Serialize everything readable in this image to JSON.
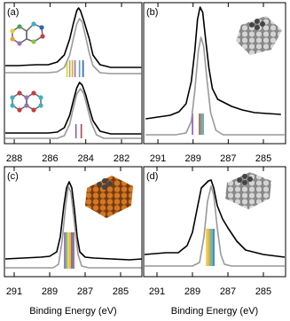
{
  "chart_data": [
    {
      "type": "line",
      "label": "(a)",
      "xlim": [
        288.55,
        280.86
      ],
      "xticks": [
        288,
        286,
        284,
        282
      ],
      "ylim": [
        0,
        159
      ],
      "series": [
        {
          "color": "#000000",
          "x": [
            288.5,
            287.8,
            286.8,
            286.1,
            285.6,
            285.2,
            284.9,
            284.7,
            284.5,
            284.4,
            284.3,
            284.1,
            283.8,
            283.6,
            283.2,
            282.6,
            281.9,
            280.9
          ],
          "values": [
            88,
            88,
            89,
            89,
            92,
            100,
            118,
            135,
            150,
            153,
            150,
            138,
            118,
            100,
            89,
            86,
            86,
            86
          ]
        },
        {
          "color": "#999999",
          "x": [
            288.5,
            286.1,
            285.6,
            285.2,
            284.9,
            284.7,
            284.5,
            284.35,
            284.2,
            284.0,
            283.8,
            283.6,
            283.2,
            282.6,
            280.9
          ],
          "values": [
            80,
            80,
            81,
            86,
            100,
            118,
            135,
            141,
            137,
            120,
            102,
            88,
            80,
            79,
            79
          ]
        },
        {
          "color": "#000000",
          "x": [
            288.5,
            286.1,
            285.6,
            285.2,
            284.9,
            284.7,
            284.5,
            284.35,
            284.2,
            284.0,
            283.8,
            283.6,
            283.2,
            282.6,
            280.9
          ],
          "values": [
            12,
            12,
            13,
            18,
            32,
            48,
            63,
            69,
            66,
            55,
            40,
            26,
            14,
            11,
            11
          ]
        },
        {
          "color": "#999999",
          "x": [
            288.5,
            285.6,
            285.2,
            284.9,
            284.7,
            284.5,
            284.3,
            284.1,
            283.9,
            283.7,
            283.4,
            283.0,
            280.9
          ],
          "values": [
            6,
            6,
            9,
            22,
            40,
            56,
            62,
            56,
            40,
            24,
            10,
            6,
            6
          ]
        }
      ],
      "sticks": [
        {
          "x": [
            285.05,
            284.9,
            284.75,
            284.6,
            284.35,
            284.15
          ],
          "colors": [
            "#e8c840",
            "#8bc34a",
            "#f0a030",
            "#9c6fb8",
            "#3fb0c8",
            "#3060c0"
          ],
          "base": 75,
          "top": 94
        },
        {
          "x": [
            284.55,
            284.25
          ],
          "colors": [
            "#8a5aa8",
            "#c04040"
          ],
          "base": 6,
          "top": 22
        }
      ]
    },
    {
      "type": "line",
      "label": "(b)",
      "xlim": [
        291.81,
        283.74
      ],
      "xticks": [
        291,
        289,
        287,
        285
      ],
      "ylim": [
        0,
        159
      ],
      "series": [
        {
          "color": "#000000",
          "x": [
            291.7,
            291.0,
            290.3,
            289.8,
            289.4,
            289.1,
            288.9,
            288.75,
            288.6,
            288.45,
            288.3,
            288.1,
            287.9,
            287.6,
            287.2,
            286.8,
            286.2,
            285.5,
            284.8,
            284.0
          ],
          "values": [
            28,
            30,
            32,
            36,
            45,
            70,
            105,
            140,
            154,
            148,
            120,
            85,
            62,
            50,
            46,
            42,
            38,
            35,
            34,
            33
          ]
        },
        {
          "color": "#999999",
          "x": [
            291.7,
            290.0,
            289.4,
            289.1,
            288.9,
            288.7,
            288.55,
            288.4,
            288.2,
            288.0,
            287.7,
            287.3,
            283.8
          ],
          "values": [
            10,
            10,
            12,
            25,
            60,
            105,
            120,
            110,
            70,
            35,
            15,
            10,
            10
          ]
        }
      ],
      "sticks": [
        {
          "x": [
            289.03,
            288.63,
            288.53,
            288.43
          ],
          "colors": [
            "#8a5aa8",
            "#c04040",
            "#50a050",
            "#40a0c0"
          ],
          "base": 10,
          "top": 34
        }
      ]
    },
    {
      "type": "line",
      "label": "(c)",
      "xlabel": "Binding Energy (eV)",
      "xlim": [
        291.55,
        283.8
      ],
      "xticks": [
        291,
        289,
        287,
        285
      ],
      "ylim": [
        0,
        124
      ],
      "series": [
        {
          "color": "#000000",
          "x": [
            291.5,
            290.5,
            289.5,
            289.0,
            288.6,
            288.4,
            288.2,
            288.05,
            287.9,
            287.75,
            287.6,
            287.45,
            287.3,
            287.0,
            286.5,
            285.5,
            284.5,
            283.8
          ],
          "values": [
            20,
            21,
            22,
            23,
            28,
            45,
            80,
            100,
            107,
            100,
            75,
            45,
            28,
            22,
            21,
            20,
            19,
            20
          ]
        },
        {
          "color": "#999999",
          "x": [
            291.5,
            288.8,
            288.5,
            288.3,
            288.1,
            287.95,
            287.8,
            287.6,
            287.4,
            287.2,
            286.8,
            283.8
          ],
          "values": [
            10,
            10,
            14,
            40,
            80,
            102,
            95,
            60,
            25,
            12,
            10,
            10
          ]
        }
      ],
      "sticks": [
        {
          "x": [
            288.15,
            288.05,
            287.95,
            287.85,
            287.75,
            287.65
          ],
          "colors": [
            "#8a5aa8",
            "#60b050",
            "#e8c840",
            "#f0a030",
            "#3060c0",
            "#c04040"
          ],
          "base": 9,
          "top": 50
        }
      ]
    },
    {
      "type": "line",
      "label": "(d)",
      "xlabel": "Binding Energy (eV)",
      "xlim": [
        291.75,
        283.75
      ],
      "xticks": [
        291,
        289,
        287,
        285
      ],
      "ylim": [
        0,
        124
      ],
      "series": [
        {
          "color": "#000000",
          "x": [
            291.7,
            290.5,
            289.8,
            289.3,
            289.0,
            288.7,
            288.5,
            288.3,
            288.1,
            287.95,
            287.8,
            287.6,
            287.3,
            287.0,
            286.5,
            286.0,
            285.0,
            283.8
          ],
          "values": [
            25,
            27,
            27,
            35,
            50,
            80,
            100,
            104,
            108,
            109,
            100,
            80,
            65,
            55,
            40,
            30,
            25,
            22
          ]
        },
        {
          "color": "#999999",
          "x": [
            291.7,
            289.0,
            288.6,
            288.35,
            288.15,
            287.95,
            287.8,
            287.6,
            287.4,
            287.2,
            286.8,
            283.8
          ],
          "values": [
            12,
            12,
            16,
            45,
            85,
            102,
            92,
            55,
            25,
            14,
            12,
            12
          ]
        }
      ],
      "sticks": [
        {
          "x": [
            288.2,
            288.1,
            288.0,
            287.9,
            287.8
          ],
          "colors": [
            "#e8c840",
            "#f0a030",
            "#60b050",
            "#40a0c0",
            "#3060c0"
          ],
          "base": 12,
          "top": 54
        }
      ]
    }
  ]
}
